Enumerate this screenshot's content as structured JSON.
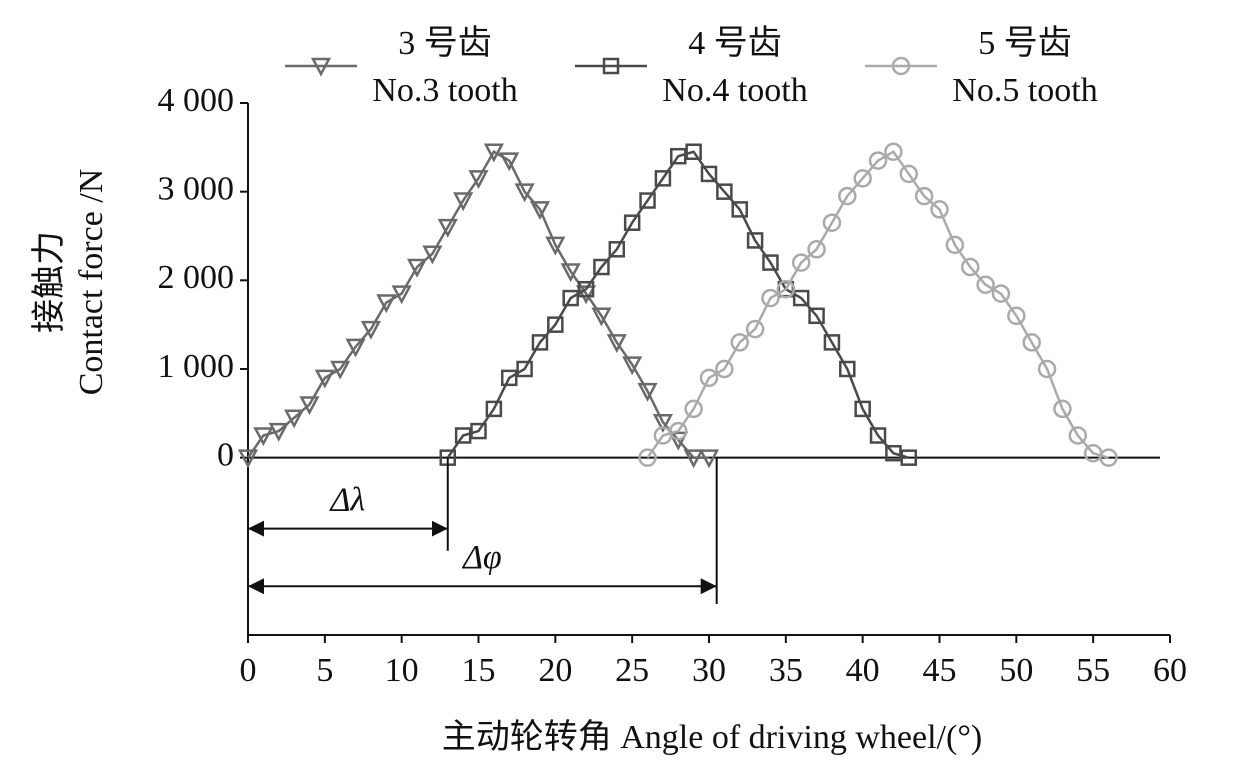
{
  "chart_data": {
    "type": "line",
    "x_label": "主动轮转角 Angle of driving wheel/(°)",
    "y_label": "接触力",
    "y_label_en": "Contact force /N",
    "xlim": [
      0,
      60
    ],
    "xticks": [
      0,
      5,
      10,
      15,
      20,
      25,
      30,
      35,
      40,
      45,
      50,
      55,
      60
    ],
    "ylim": [
      -2000,
      4000
    ],
    "yticks": [
      {
        "value": 0,
        "label": "0"
      },
      {
        "value": 1000,
        "label": "1 000"
      },
      {
        "value": 2000,
        "label": "2 000"
      },
      {
        "value": 3000,
        "label": "3 000"
      },
      {
        "value": 4000,
        "label": "4 000"
      }
    ],
    "series": [
      {
        "name": "3 号齿",
        "name_en": "No.3 tooth",
        "color": "#6a6a6a",
        "marker": "triangle",
        "x": [
          0,
          1,
          2,
          3,
          4,
          5,
          6,
          7,
          8,
          9,
          10,
          11,
          12,
          13,
          14,
          15,
          16,
          17,
          18,
          19,
          20,
          21,
          22,
          23,
          24,
          25,
          26,
          27,
          28,
          29,
          30
        ],
        "values": [
          0,
          250,
          300,
          450,
          600,
          900,
          1000,
          1250,
          1450,
          1750,
          1850,
          2150,
          2300,
          2600,
          2900,
          3150,
          3450,
          3350,
          3000,
          2800,
          2400,
          2100,
          1850,
          1600,
          1300,
          1050,
          750,
          400,
          200,
          0,
          0
        ]
      },
      {
        "name": "4 号齿",
        "name_en": "No.4 tooth",
        "color": "#4a4a4a",
        "marker": "square",
        "x": [
          13,
          14,
          15,
          16,
          17,
          18,
          19,
          20,
          21,
          22,
          23,
          24,
          25,
          26,
          27,
          28,
          29,
          30,
          31,
          32,
          33,
          34,
          35,
          36,
          37,
          38,
          39,
          40,
          41,
          42,
          43
        ],
        "values": [
          0,
          250,
          300,
          550,
          900,
          1000,
          1300,
          1500,
          1800,
          1900,
          2150,
          2350,
          2650,
          2900,
          3150,
          3400,
          3450,
          3200,
          3000,
          2800,
          2450,
          2200,
          1900,
          1800,
          1600,
          1300,
          1000,
          550,
          250,
          50,
          0
        ]
      },
      {
        "name": "5 号齿",
        "name_en": "No.5 tooth",
        "color": "#aaaaaa",
        "marker": "circle",
        "x": [
          26,
          27,
          28,
          29,
          30,
          31,
          32,
          33,
          34,
          35,
          36,
          37,
          38,
          39,
          40,
          41,
          42,
          43,
          44,
          45,
          46,
          47,
          48,
          49,
          50,
          51,
          52,
          53,
          54,
          55,
          56
        ],
        "values": [
          0,
          250,
          300,
          550,
          900,
          1000,
          1300,
          1450,
          1800,
          1900,
          2200,
          2350,
          2650,
          2950,
          3150,
          3350,
          3450,
          3200,
          2950,
          2800,
          2400,
          2150,
          1950,
          1850,
          1600,
          1300,
          1000,
          550,
          250,
          50,
          0
        ]
      }
    ],
    "annotations": [
      {
        "text": "Δλ",
        "x": [
          0,
          13
        ],
        "y": -800,
        "y_end": -1050
      },
      {
        "text": "Δφ",
        "x": [
          0,
          30.5
        ],
        "y": -1450,
        "y_end": -1650
      }
    ]
  }
}
